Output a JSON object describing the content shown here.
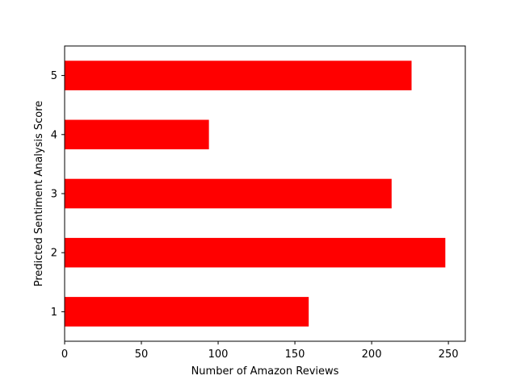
{
  "chart_data": {
    "type": "bar",
    "orientation": "horizontal",
    "categories": [
      "1",
      "2",
      "3",
      "4",
      "5"
    ],
    "values": [
      159,
      248,
      213,
      94,
      226
    ],
    "xlabel": "Number of Amazon Reviews",
    "ylabel": "Predicted Sentiment Analysis Score",
    "xlim": [
      0,
      261
    ],
    "xticks": [
      0,
      50,
      100,
      150,
      200,
      250
    ],
    "grid": false,
    "legend": "none",
    "bar_color": "#ff0000"
  }
}
